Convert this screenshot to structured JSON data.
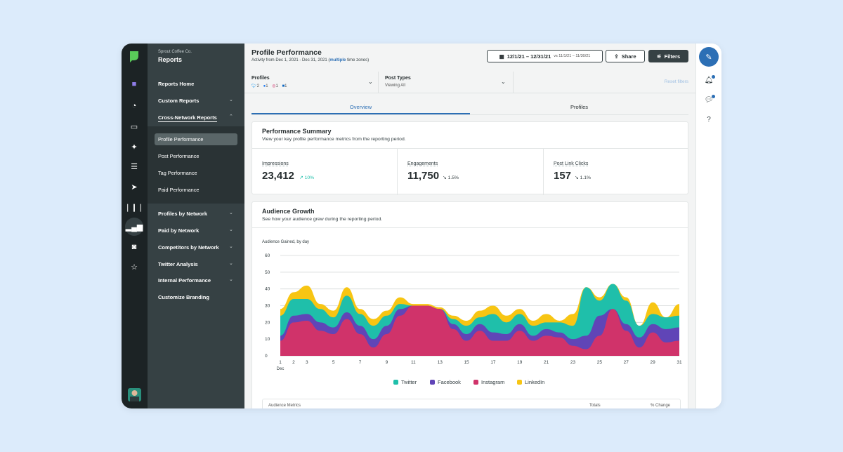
{
  "sidebar": {
    "company": "Sprout Coffee Co.",
    "section": "Reports",
    "items": [
      {
        "label": "Reports Home"
      },
      {
        "label": "Custom Reports"
      },
      {
        "label": "Cross-Network Reports"
      },
      {
        "label": "Profile Performance"
      },
      {
        "label": "Post Performance"
      },
      {
        "label": "Tag Performance"
      },
      {
        "label": "Paid Performance"
      },
      {
        "label": "Profiles by Network"
      },
      {
        "label": "Paid by Network"
      },
      {
        "label": "Competitors by Network"
      },
      {
        "label": "Twitter Analysis"
      },
      {
        "label": "Internal Performance"
      },
      {
        "label": "Customize Branding"
      }
    ]
  },
  "rail_icons": [
    "leaf-logo-icon",
    "folder-icon",
    "gauge-icon",
    "inbox-icon",
    "pin-icon",
    "list-icon",
    "send-icon",
    "listening-icon",
    "reports-icon",
    "bot-icon",
    "star-icon"
  ],
  "header": {
    "title": "Profile Performance",
    "activity_prefix": "Activity from Dec 1, 2021 - Dec 31, 2021 (",
    "activity_link": "multiple",
    "activity_suffix": " time zones)",
    "date_range": "12/1/21 – 12/31/21",
    "compare_range": "vs 11/1/21 – 11/30/21",
    "share_label": "Share",
    "filters_label": "Filters"
  },
  "filters": {
    "profiles_label": "Profiles",
    "profile_counts": {
      "twitter": "2",
      "facebook": "1",
      "instagram": "1",
      "linkedin": "1"
    },
    "post_types_label": "Post Types",
    "post_types_value": "Viewing All",
    "reset_label": "Reset filters"
  },
  "tabs": [
    {
      "label": "Overview"
    },
    {
      "label": "Profiles"
    }
  ],
  "summary": {
    "title": "Performance Summary",
    "subtitle": "View your key profile performance metrics from the reporting period.",
    "metrics": [
      {
        "label": "Impressions",
        "value": "23,412",
        "delta": "10%",
        "direction": "up"
      },
      {
        "label": "Engagements",
        "value": "11,750",
        "delta": "1.5%",
        "direction": "down"
      },
      {
        "label": "Post Link Clicks",
        "value": "157",
        "delta": "1.1%",
        "direction": "down"
      }
    ]
  },
  "growth": {
    "title": "Audience Growth",
    "subtitle": "See how your audience grew during the reporting period.",
    "footer_left": "Audience Metrics",
    "footer_mid": "Totals",
    "footer_right": "% Change"
  },
  "chart_data": {
    "type": "area",
    "title": "Audience Gained, by day",
    "ylim": [
      0,
      60
    ],
    "yticks": [
      0,
      10,
      20,
      30,
      40,
      50,
      60
    ],
    "x": [
      1,
      2,
      3,
      4,
      5,
      6,
      7,
      8,
      9,
      10,
      11,
      12,
      13,
      14,
      15,
      16,
      17,
      18,
      19,
      20,
      21,
      22,
      23,
      24,
      25,
      26,
      27,
      28,
      29,
      30,
      31
    ],
    "x_first_sublabel": "Dec",
    "grid": true,
    "legend_position": "bottom",
    "stacked": true,
    "series": [
      {
        "name": "Instagram",
        "color": "#d0336a",
        "values": [
          9,
          20,
          21,
          15,
          13,
          22,
          13,
          5,
          13,
          24,
          30,
          30,
          28,
          16,
          9,
          15,
          9,
          9,
          15,
          9,
          12,
          11,
          6,
          4,
          12,
          28,
          15,
          5,
          14,
          8,
          9
        ]
      },
      {
        "name": "Facebook",
        "color": "#6045b7",
        "values": [
          3,
          4,
          4,
          5,
          4,
          4,
          5,
          5,
          5,
          4,
          0,
          0,
          0,
          3,
          4,
          4,
          5,
          4,
          4,
          3,
          4,
          3,
          4,
          8,
          12,
          0,
          4,
          6,
          5,
          8,
          8
        ]
      },
      {
        "name": "Twitter",
        "color": "#1fbfaa",
        "values": [
          12,
          10,
          9,
          8,
          6,
          10,
          7,
          8,
          6,
          3,
          0,
          0,
          0,
          3,
          5,
          4,
          11,
          7,
          6,
          6,
          4,
          6,
          8,
          29,
          9,
          15,
          14,
          7,
          6,
          7,
          7
        ]
      },
      {
        "name": "LinkedIn",
        "color": "#f7c513",
        "values": [
          4,
          4,
          8,
          3,
          4,
          5,
          3,
          4,
          3,
          4,
          1,
          1,
          1,
          2,
          3,
          4,
          5,
          4,
          3,
          3,
          5,
          1,
          7,
          0,
          2,
          0,
          2,
          0,
          7,
          0,
          7
        ]
      }
    ],
    "legend_order": [
      "Twitter",
      "Facebook",
      "Instagram",
      "LinkedIn"
    ]
  },
  "colors": {
    "twitter": "#1fbfaa",
    "facebook": "#6045b7",
    "instagram": "#d0336a",
    "linkedin": "#f7c513",
    "accent": "#2c6fb5",
    "sidebar": "#364144",
    "rail": "#1c2325"
  }
}
